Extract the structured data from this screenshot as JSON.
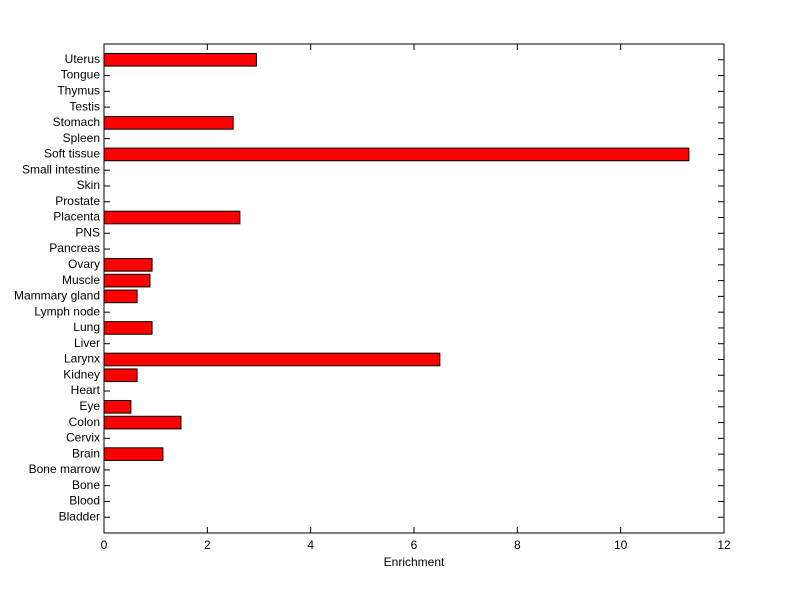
{
  "chart_data": {
    "type": "barh",
    "xlabel": "Enrichment",
    "categories": [
      "Bladder",
      "Blood",
      "Bone",
      "Bone marrow",
      "Brain",
      "Cervix",
      "Colon",
      "Eye",
      "Heart",
      "Kidney",
      "Larynx",
      "Liver",
      "Lung",
      "Lymph node",
      "Mammary gland",
      "Muscle",
      "Ovary",
      "Pancreas",
      "PNS",
      "Placenta",
      "Prostate",
      "Skin",
      "Small intestine",
      "Soft tissue",
      "Spleen",
      "Stomach",
      "Testis",
      "Thymus",
      "Tongue",
      "Uterus"
    ],
    "values": [
      0,
      0,
      0,
      0,
      1.14,
      0,
      1.49,
      0.52,
      0,
      0.64,
      6.5,
      0,
      0.93,
      0,
      0.64,
      0.89,
      0.93,
      0,
      0,
      2.63,
      0,
      0,
      0,
      11.32,
      0,
      2.5,
      0,
      0,
      0,
      2.95
    ],
    "color": "#ff0000",
    "xlim": [
      0,
      12
    ],
    "xticks": [
      0,
      2,
      4,
      6,
      8,
      10,
      12
    ]
  }
}
